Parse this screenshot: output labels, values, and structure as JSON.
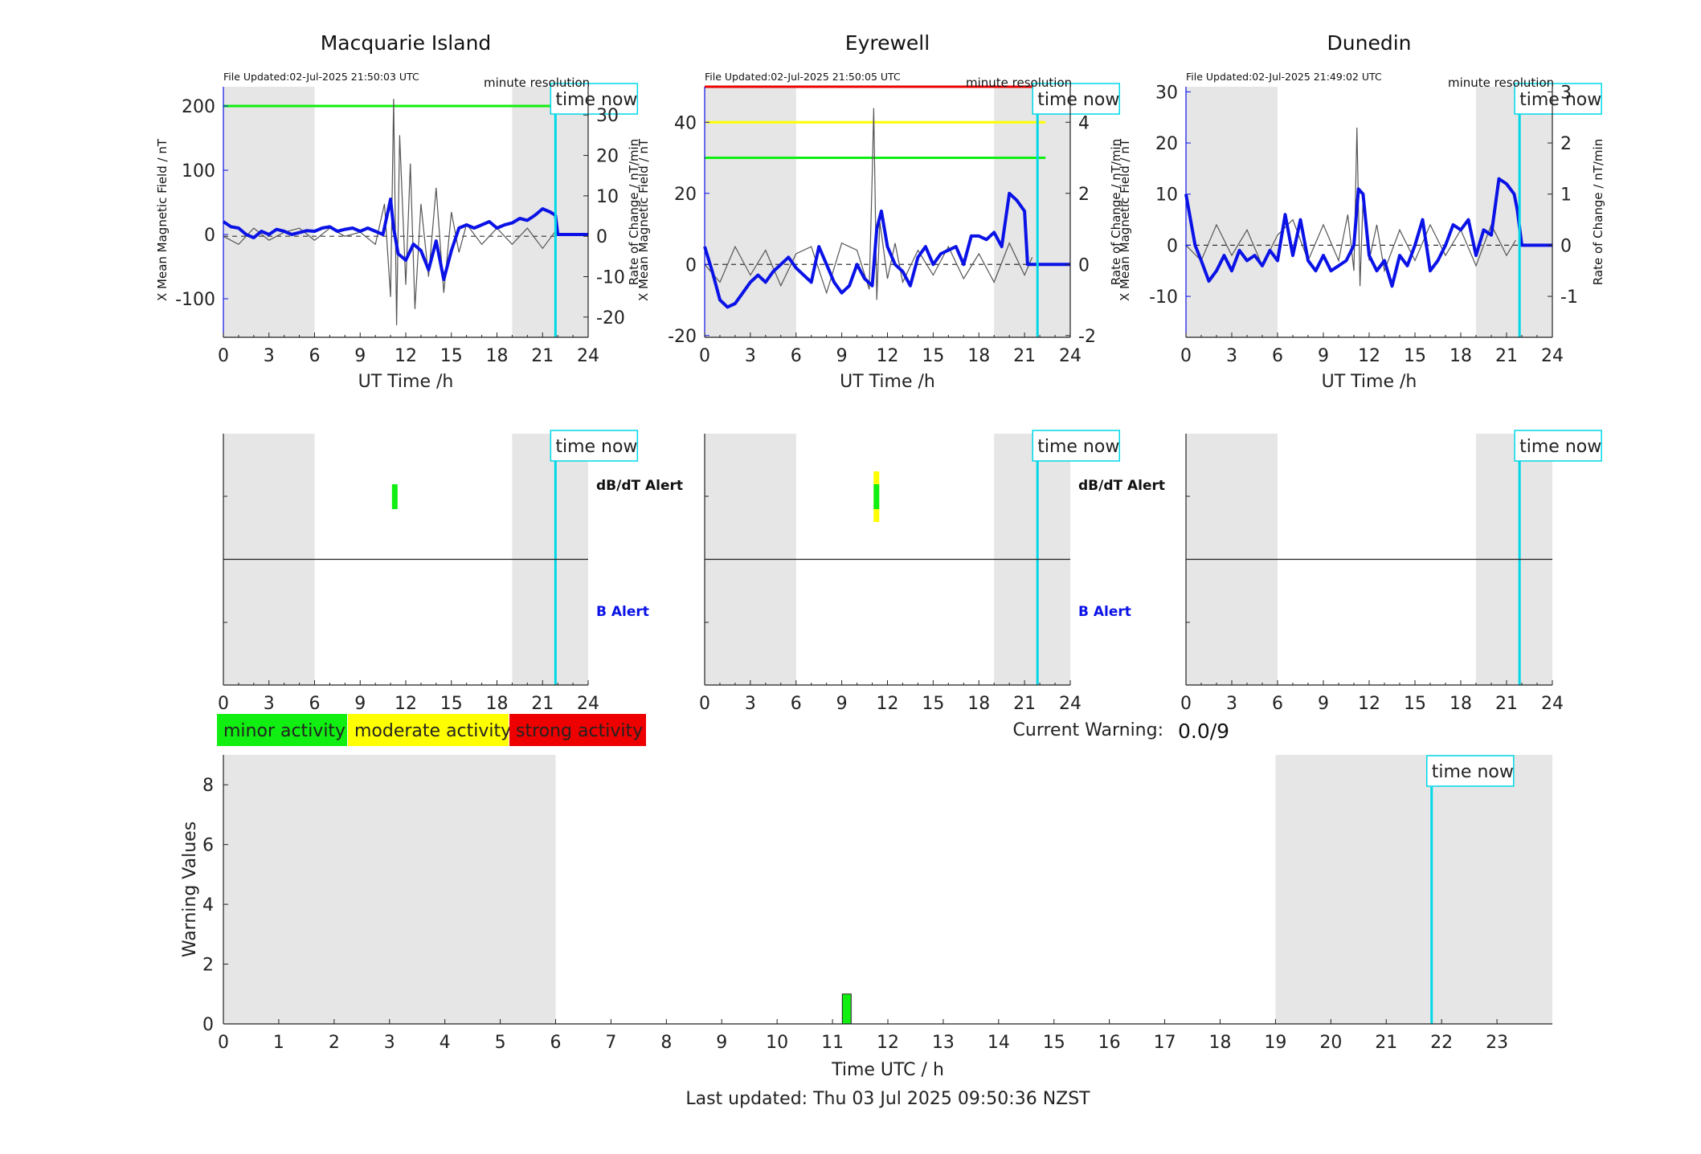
{
  "colors": {
    "field": "#0a12e6",
    "rate": "#555555",
    "night": "#e6e6e6",
    "now": "#00d8e8",
    "minor": "#11ee11",
    "moderate": "#ffff00",
    "strong": "#ee0000"
  },
  "labels": {
    "file_updated": [
      "File Updated:02-Jul-2025 21:50:03 UTC",
      "File Updated:02-Jul-2025 21:50:05 UTC",
      "File Updated:02-Jul-2025 21:49:02 UTC"
    ],
    "resolution": "minute resolution",
    "time_now": "time now",
    "ylabel_field": "X Mean Magnetic Field / nT",
    "ylabel_rate": "Rate of Change / nT/min",
    "xlabel_ut": "UT Time /h",
    "dbdt_alert": "dB/dT Alert",
    "b_alert": "B Alert",
    "current_warning_label": "Current Warning:",
    "current_warning_value": "0.0/9",
    "legend": [
      "minor activity",
      "moderate activity",
      "strong activity"
    ],
    "warning_ylabel": "Warning Values",
    "warning_xlabel": "Time UTC / h",
    "last_updated": "Last updated: Thu 03 Jul 2025 09:50:36 NZST"
  },
  "chart_data": [
    {
      "type": "line",
      "title": "Macquarie Island",
      "xlabel": "UT Time /h",
      "ylabel": "X Mean Magnetic Field / nT",
      "ylabel_right": "Rate of Change / nT/min",
      "xlim": [
        0,
        24
      ],
      "xticks": [
        0,
        3,
        6,
        9,
        12,
        15,
        18,
        21,
        24
      ],
      "ylim": [
        -160,
        230
      ],
      "yticks": [
        -100,
        0,
        100,
        200
      ],
      "ylim_right": [
        -25,
        37
      ],
      "yticks_right": [
        -20,
        -10,
        0,
        10,
        20,
        30
      ],
      "night_bands": [
        [
          0,
          6
        ],
        [
          19,
          24
        ]
      ],
      "time_now": 21.85,
      "thresholds": [
        {
          "level": "minor",
          "y": 200
        }
      ],
      "field_series": {
        "x": [
          0,
          0.5,
          1,
          1.5,
          2,
          2.5,
          3,
          3.5,
          4,
          4.5,
          5,
          5.5,
          6,
          6.5,
          7,
          7.5,
          8,
          8.5,
          9,
          9.5,
          10,
          10.5,
          11,
          11.2,
          11.5,
          12,
          12.5,
          13,
          13.5,
          14,
          14.5,
          15,
          15.5,
          16,
          16.5,
          17,
          17.5,
          18,
          18.5,
          19,
          19.5,
          20,
          20.5,
          21,
          21.5,
          21.85,
          22,
          24
        ],
        "y": [
          20,
          12,
          10,
          0,
          -5,
          5,
          0,
          8,
          5,
          0,
          3,
          6,
          5,
          10,
          12,
          5,
          8,
          10,
          5,
          10,
          5,
          0,
          55,
          10,
          -30,
          -40,
          -15,
          -25,
          -55,
          -10,
          -70,
          -25,
          10,
          15,
          10,
          15,
          20,
          10,
          15,
          18,
          25,
          22,
          30,
          40,
          35,
          30,
          0,
          0
        ]
      },
      "rate_series": {
        "x": [
          0,
          1,
          2,
          3,
          4,
          5,
          6,
          7,
          8,
          9,
          10,
          10.6,
          11,
          11.2,
          11.4,
          11.6,
          12,
          12.3,
          12.6,
          13,
          13.5,
          14,
          14.5,
          15,
          15.5,
          16,
          17,
          18,
          19,
          20,
          21,
          21.8
        ],
        "y": [
          0,
          -2,
          2,
          -1,
          1,
          2,
          -1,
          2,
          0,
          1,
          -2,
          8,
          -15,
          34,
          -22,
          25,
          -12,
          18,
          -18,
          8,
          -10,
          12,
          -14,
          6,
          -4,
          3,
          -2,
          2,
          -2,
          2,
          -3,
          1
        ]
      }
    },
    {
      "type": "line",
      "title": "Eyrewell",
      "xlabel": "UT Time /h",
      "ylabel": "X Mean Magnetic Field / nT",
      "ylabel_right": "Rate of Change / nT/min",
      "xlim": [
        0,
        24
      ],
      "xticks": [
        0,
        3,
        6,
        9,
        12,
        15,
        18,
        21,
        24
      ],
      "ylim": [
        -20.5,
        50
      ],
      "yticks": [
        -20,
        0,
        20,
        40
      ],
      "ylim_right": [
        -2.05,
        5
      ],
      "yticks_right": [
        -2,
        0,
        2,
        4
      ],
      "night_bands": [
        [
          0,
          6
        ],
        [
          19,
          24
        ]
      ],
      "time_now": 21.85,
      "thresholds": [
        {
          "level": "minor",
          "y": 30
        },
        {
          "level": "moderate",
          "y": 40
        },
        {
          "level": "strong",
          "y": 50
        }
      ],
      "field_series": {
        "x": [
          0,
          0.5,
          1,
          1.5,
          2,
          2.5,
          3,
          3.5,
          4,
          4.5,
          5,
          5.5,
          6,
          6.5,
          7,
          7.5,
          8,
          8.5,
          9,
          9.5,
          10,
          10.5,
          11,
          11.3,
          11.6,
          12,
          12.5,
          13,
          13.5,
          14,
          14.5,
          15,
          15.5,
          16,
          16.5,
          17,
          17.5,
          18,
          18.5,
          19,
          19.5,
          20,
          20.5,
          21,
          21.2,
          21.4,
          24
        ],
        "y": [
          5,
          -2,
          -10,
          -12,
          -11,
          -8,
          -5,
          -3,
          -5,
          -2,
          0,
          2,
          -1,
          -3,
          -5,
          5,
          0,
          -5,
          -8,
          -6,
          0,
          -4,
          -6,
          10,
          15,
          5,
          0,
          -2,
          -6,
          2,
          5,
          0,
          3,
          4,
          5,
          0,
          8,
          8,
          7,
          9,
          5,
          20,
          18,
          15,
          0,
          0,
          0
        ]
      },
      "rate_series": {
        "x": [
          0,
          1,
          2,
          3,
          4,
          5,
          6,
          7,
          8,
          9,
          10,
          10.8,
          11.0,
          11.1,
          11.3,
          11.5,
          12,
          12.5,
          13,
          14,
          15,
          16,
          17,
          18,
          19,
          20,
          21,
          21.5
        ],
        "y": [
          0,
          -0.5,
          0.5,
          -0.3,
          0.4,
          -0.6,
          0.3,
          0.5,
          -0.8,
          0.6,
          0.4,
          -0.7,
          2.5,
          4.4,
          -1.0,
          1.2,
          -0.4,
          0.6,
          -0.5,
          0.4,
          -0.3,
          0.5,
          -0.4,
          0.3,
          -0.5,
          0.6,
          -0.3,
          0.2
        ]
      }
    },
    {
      "type": "line",
      "title": "Dunedin",
      "xlabel": "UT Time /h",
      "ylabel": "X Mean Magnetic Field / nT",
      "ylabel_right": "Rate of Change / nT/min",
      "xlim": [
        0,
        24
      ],
      "xticks": [
        0,
        3,
        6,
        9,
        12,
        15,
        18,
        21,
        24
      ],
      "ylim": [
        -18,
        31
      ],
      "yticks": [
        -10,
        0,
        10,
        20,
        30
      ],
      "ylim_right": [
        -1.8,
        3.1
      ],
      "yticks_right": [
        -1,
        0,
        1,
        2,
        3
      ],
      "night_bands": [
        [
          0,
          6
        ],
        [
          19,
          24
        ]
      ],
      "time_now": 21.85,
      "thresholds": [],
      "field_series": {
        "x": [
          0,
          0.3,
          0.6,
          1,
          1.5,
          2,
          2.5,
          3,
          3.5,
          4,
          4.5,
          5,
          5.5,
          6,
          6.5,
          7,
          7.5,
          8,
          8.5,
          9,
          9.5,
          10,
          10.5,
          11,
          11.3,
          11.6,
          12,
          12.5,
          13,
          13.5,
          14,
          14.5,
          15,
          15.5,
          16,
          16.5,
          17,
          17.5,
          18,
          18.5,
          19,
          19.5,
          20,
          20.5,
          21,
          21.5,
          21.7,
          22,
          24
        ],
        "y": [
          10,
          5,
          0,
          -3,
          -7,
          -5,
          -2,
          -5,
          -1,
          -3,
          -2,
          -4,
          -1,
          -3,
          6,
          -2,
          5,
          -3,
          -5,
          -2,
          -5,
          -4,
          -3,
          0,
          11,
          10,
          -2,
          -5,
          -3,
          -8,
          -2,
          -4,
          0,
          5,
          -5,
          -3,
          0,
          4,
          3,
          5,
          -2,
          3,
          2,
          13,
          12,
          10,
          7,
          0,
          0
        ]
      },
      "rate_series": {
        "x": [
          0,
          1,
          2,
          3,
          4,
          5,
          6,
          7,
          8,
          9,
          10,
          10.6,
          11.0,
          11.2,
          11.4,
          11.6,
          12,
          12.5,
          13,
          14,
          15,
          16,
          17,
          18,
          19,
          20,
          21,
          21.6
        ],
        "y": [
          0,
          -0.3,
          0.4,
          -0.2,
          0.3,
          -0.4,
          0.2,
          0.5,
          -0.3,
          0.4,
          -0.3,
          0.6,
          -0.5,
          2.3,
          -0.8,
          0.9,
          -0.3,
          0.4,
          -0.5,
          0.3,
          -0.3,
          0.4,
          -0.2,
          0.3,
          -0.4,
          0.4,
          -0.2,
          0.1
        ]
      }
    },
    {
      "type": "bar",
      "name": "alerts",
      "xlim": [
        0,
        24
      ],
      "xticks": [
        0,
        3,
        6,
        9,
        12,
        15,
        18,
        21,
        24
      ],
      "stations": [
        {
          "dbdt_alerts": [
            {
              "x": 11.25,
              "level": "minor"
            }
          ],
          "b_alerts": []
        },
        {
          "dbdt_alerts": [
            {
              "x": 11.25,
              "level": "moderate"
            }
          ],
          "b_alerts": []
        },
        {
          "dbdt_alerts": [],
          "b_alerts": []
        }
      ]
    },
    {
      "type": "bar",
      "name": "warning",
      "xlabel": "Time UTC / h",
      "ylabel": "Warning Values",
      "xlim": [
        0,
        24
      ],
      "xticks": [
        0,
        1,
        2,
        3,
        4,
        5,
        6,
        7,
        8,
        9,
        10,
        11,
        12,
        13,
        14,
        15,
        16,
        17,
        18,
        19,
        20,
        21,
        22,
        23
      ],
      "ylim": [
        0,
        9
      ],
      "yticks": [
        0,
        2,
        4,
        6,
        8
      ],
      "night_bands": [
        [
          0,
          6
        ],
        [
          19,
          24
        ]
      ],
      "time_now": 21.82,
      "bars": [
        {
          "x": 11.25,
          "value": 1,
          "level": "minor"
        }
      ]
    }
  ]
}
